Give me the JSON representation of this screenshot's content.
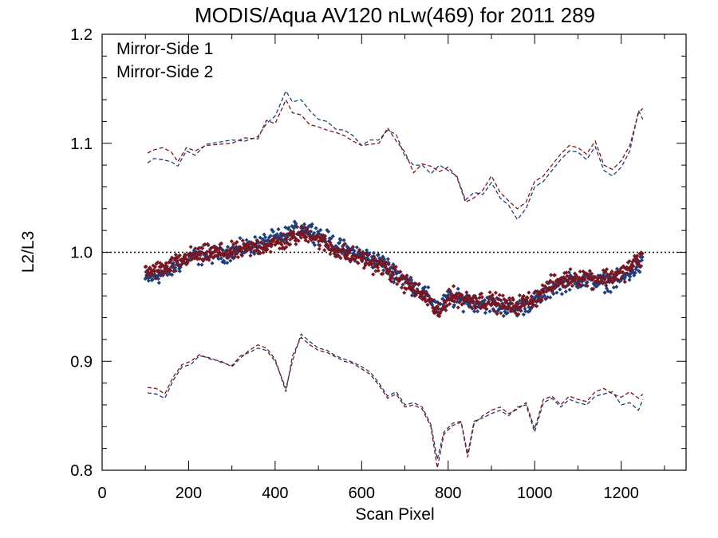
{
  "chart_data": {
    "type": "scatter",
    "title": "MODIS/Aqua AV120 nLw(469) for 2011 289",
    "xlabel": "Scan Pixel",
    "ylabel": "L2/L3",
    "xlim": [
      0,
      1350
    ],
    "ylim": [
      0.8,
      1.2
    ],
    "x_ticks": [
      "0",
      "200",
      "400",
      "600",
      "800",
      "1000",
      "1200"
    ],
    "y_ticks": [
      "0.8",
      "0.9",
      "1.0",
      "1.1",
      "1.2"
    ],
    "reference_line": 1.0,
    "legend_position": "top-left",
    "colors": {
      "ms1": "#1f3f7a",
      "ms2": "#7a1620"
    },
    "series": [
      {
        "name": "Mirror-Side 1",
        "color": "#1f3f7a",
        "mean": [
          [
            100,
            0.975
          ],
          [
            150,
            0.982
          ],
          [
            200,
            0.995
          ],
          [
            250,
            0.998
          ],
          [
            300,
            1.0
          ],
          [
            350,
            1.006
          ],
          [
            400,
            1.012
          ],
          [
            425,
            1.015
          ],
          [
            450,
            1.02
          ],
          [
            475,
            1.022
          ],
          [
            500,
            1.016
          ],
          [
            550,
            1.004
          ],
          [
            600,
            0.997
          ],
          [
            650,
            0.99
          ],
          [
            700,
            0.975
          ],
          [
            750,
            0.96
          ],
          [
            780,
            0.948
          ],
          [
            800,
            0.958
          ],
          [
            850,
            0.955
          ],
          [
            900,
            0.952
          ],
          [
            950,
            0.948
          ],
          [
            1000,
            0.955
          ],
          [
            1050,
            0.97
          ],
          [
            1100,
            0.975
          ],
          [
            1150,
            0.972
          ],
          [
            1200,
            0.975
          ],
          [
            1250,
            0.99
          ]
        ],
        "upper": [
          [
            105,
            1.082
          ],
          [
            120,
            1.086
          ],
          [
            140,
            1.085
          ],
          [
            160,
            1.083
          ],
          [
            175,
            1.079
          ],
          [
            195,
            1.093
          ],
          [
            215,
            1.089
          ],
          [
            240,
            1.099
          ],
          [
            270,
            1.101
          ],
          [
            300,
            1.103
          ],
          [
            330,
            1.102
          ],
          [
            360,
            1.106
          ],
          [
            380,
            1.118
          ],
          [
            400,
            1.125
          ],
          [
            425,
            1.148
          ],
          [
            440,
            1.138
          ],
          [
            460,
            1.14
          ],
          [
            480,
            1.13
          ],
          [
            500,
            1.122
          ],
          [
            520,
            1.12
          ],
          [
            540,
            1.113
          ],
          [
            560,
            1.112
          ],
          [
            580,
            1.107
          ],
          [
            600,
            1.098
          ],
          [
            620,
            1.103
          ],
          [
            640,
            1.103
          ],
          [
            660,
            1.112
          ],
          [
            680,
            1.108
          ],
          [
            700,
            1.088
          ],
          [
            720,
            1.08
          ],
          [
            740,
            1.08
          ],
          [
            760,
            1.072
          ],
          [
            780,
            1.08
          ],
          [
            800,
            1.075
          ],
          [
            820,
            1.07
          ],
          [
            840,
            1.048
          ],
          [
            860,
            1.055
          ],
          [
            880,
            1.053
          ],
          [
            900,
            1.064
          ],
          [
            920,
            1.05
          ],
          [
            940,
            1.043
          ],
          [
            960,
            1.03
          ],
          [
            980,
            1.04
          ],
          [
            1000,
            1.06
          ],
          [
            1020,
            1.065
          ],
          [
            1040,
            1.075
          ],
          [
            1060,
            1.085
          ],
          [
            1080,
            1.093
          ],
          [
            1100,
            1.092
          ],
          [
            1120,
            1.085
          ],
          [
            1140,
            1.097
          ],
          [
            1160,
            1.075
          ],
          [
            1180,
            1.07
          ],
          [
            1200,
            1.078
          ],
          [
            1220,
            1.093
          ],
          [
            1240,
            1.13
          ],
          [
            1250,
            1.122
          ]
        ],
        "lower": [
          [
            105,
            0.871
          ],
          [
            125,
            0.87
          ],
          [
            145,
            0.866
          ],
          [
            165,
            0.883
          ],
          [
            185,
            0.895
          ],
          [
            205,
            0.897
          ],
          [
            225,
            0.905
          ],
          [
            250,
            0.903
          ],
          [
            275,
            0.899
          ],
          [
            300,
            0.896
          ],
          [
            320,
            0.905
          ],
          [
            340,
            0.908
          ],
          [
            360,
            0.912
          ],
          [
            380,
            0.91
          ],
          [
            400,
            0.9
          ],
          [
            425,
            0.875
          ],
          [
            440,
            0.9
          ],
          [
            460,
            0.925
          ],
          [
            480,
            0.918
          ],
          [
            500,
            0.912
          ],
          [
            520,
            0.91
          ],
          [
            540,
            0.905
          ],
          [
            560,
            0.902
          ],
          [
            580,
            0.899
          ],
          [
            600,
            0.895
          ],
          [
            620,
            0.89
          ],
          [
            640,
            0.88
          ],
          [
            660,
            0.868
          ],
          [
            680,
            0.872
          ],
          [
            700,
            0.86
          ],
          [
            720,
            0.862
          ],
          [
            740,
            0.858
          ],
          [
            760,
            0.842
          ],
          [
            775,
            0.81
          ],
          [
            790,
            0.835
          ],
          [
            810,
            0.843
          ],
          [
            830,
            0.845
          ],
          [
            845,
            0.815
          ],
          [
            860,
            0.845
          ],
          [
            880,
            0.848
          ],
          [
            900,
            0.852
          ],
          [
            920,
            0.855
          ],
          [
            940,
            0.85
          ],
          [
            960,
            0.858
          ],
          [
            980,
            0.86
          ],
          [
            1000,
            0.835
          ],
          [
            1020,
            0.862
          ],
          [
            1040,
            0.866
          ],
          [
            1060,
            0.858
          ],
          [
            1080,
            0.865
          ],
          [
            1100,
            0.862
          ],
          [
            1120,
            0.86
          ],
          [
            1140,
            0.868
          ],
          [
            1160,
            0.87
          ],
          [
            1180,
            0.872
          ],
          [
            1200,
            0.86
          ],
          [
            1220,
            0.862
          ],
          [
            1240,
            0.855
          ],
          [
            1250,
            0.865
          ]
        ]
      },
      {
        "name": "Mirror-Side 2",
        "color": "#7a1620",
        "mean": [
          [
            100,
            0.982
          ],
          [
            150,
            0.985
          ],
          [
            200,
            0.996
          ],
          [
            250,
            0.999
          ],
          [
            300,
            1.0
          ],
          [
            350,
            1.004
          ],
          [
            400,
            1.008
          ],
          [
            425,
            1.01
          ],
          [
            450,
            1.015
          ],
          [
            475,
            1.018
          ],
          [
            500,
            1.011
          ],
          [
            550,
            1.0
          ],
          [
            600,
            0.994
          ],
          [
            650,
            0.986
          ],
          [
            700,
            0.972
          ],
          [
            750,
            0.958
          ],
          [
            780,
            0.942
          ],
          [
            800,
            0.96
          ],
          [
            850,
            0.957
          ],
          [
            900,
            0.955
          ],
          [
            950,
            0.95
          ],
          [
            1000,
            0.958
          ],
          [
            1050,
            0.973
          ],
          [
            1100,
            0.978
          ],
          [
            1150,
            0.976
          ],
          [
            1200,
            0.98
          ],
          [
            1250,
            0.997
          ]
        ],
        "upper": [
          [
            105,
            1.091
          ],
          [
            120,
            1.094
          ],
          [
            140,
            1.096
          ],
          [
            160,
            1.092
          ],
          [
            175,
            1.083
          ],
          [
            195,
            1.096
          ],
          [
            215,
            1.093
          ],
          [
            240,
            1.098
          ],
          [
            270,
            1.099
          ],
          [
            300,
            1.1
          ],
          [
            330,
            1.105
          ],
          [
            360,
            1.104
          ],
          [
            380,
            1.121
          ],
          [
            400,
            1.118
          ],
          [
            425,
            1.14
          ],
          [
            440,
            1.128
          ],
          [
            460,
            1.126
          ],
          [
            480,
            1.117
          ],
          [
            500,
            1.115
          ],
          [
            520,
            1.112
          ],
          [
            540,
            1.11
          ],
          [
            560,
            1.107
          ],
          [
            580,
            1.102
          ],
          [
            600,
            1.098
          ],
          [
            620,
            1.099
          ],
          [
            640,
            1.1
          ],
          [
            660,
            1.114
          ],
          [
            680,
            1.102
          ],
          [
            700,
            1.092
          ],
          [
            720,
            1.073
          ],
          [
            740,
            1.081
          ],
          [
            760,
            1.079
          ],
          [
            780,
            1.074
          ],
          [
            800,
            1.078
          ],
          [
            820,
            1.069
          ],
          [
            840,
            1.046
          ],
          [
            860,
            1.05
          ],
          [
            880,
            1.057
          ],
          [
            900,
            1.07
          ],
          [
            920,
            1.055
          ],
          [
            940,
            1.047
          ],
          [
            960,
            1.04
          ],
          [
            980,
            1.046
          ],
          [
            1000,
            1.065
          ],
          [
            1020,
            1.07
          ],
          [
            1040,
            1.08
          ],
          [
            1060,
            1.09
          ],
          [
            1080,
            1.098
          ],
          [
            1100,
            1.096
          ],
          [
            1120,
            1.09
          ],
          [
            1140,
            1.102
          ],
          [
            1160,
            1.08
          ],
          [
            1180,
            1.076
          ],
          [
            1200,
            1.084
          ],
          [
            1220,
            1.098
          ],
          [
            1240,
            1.128
          ],
          [
            1250,
            1.132
          ]
        ],
        "lower": [
          [
            105,
            0.876
          ],
          [
            125,
            0.875
          ],
          [
            145,
            0.87
          ],
          [
            165,
            0.886
          ],
          [
            185,
            0.897
          ],
          [
            205,
            0.9
          ],
          [
            225,
            0.906
          ],
          [
            250,
            0.902
          ],
          [
            275,
            0.9
          ],
          [
            300,
            0.895
          ],
          [
            320,
            0.903
          ],
          [
            340,
            0.91
          ],
          [
            360,
            0.915
          ],
          [
            380,
            0.912
          ],
          [
            400,
            0.902
          ],
          [
            425,
            0.872
          ],
          [
            440,
            0.905
          ],
          [
            460,
            0.922
          ],
          [
            480,
            0.915
          ],
          [
            500,
            0.91
          ],
          [
            520,
            0.908
          ],
          [
            540,
            0.904
          ],
          [
            560,
            0.9
          ],
          [
            580,
            0.898
          ],
          [
            600,
            0.893
          ],
          [
            620,
            0.888
          ],
          [
            640,
            0.878
          ],
          [
            660,
            0.866
          ],
          [
            680,
            0.87
          ],
          [
            700,
            0.858
          ],
          [
            720,
            0.86
          ],
          [
            740,
            0.856
          ],
          [
            760,
            0.84
          ],
          [
            775,
            0.802
          ],
          [
            790,
            0.833
          ],
          [
            810,
            0.841
          ],
          [
            830,
            0.844
          ],
          [
            845,
            0.812
          ],
          [
            860,
            0.843
          ],
          [
            880,
            0.85
          ],
          [
            900,
            0.855
          ],
          [
            920,
            0.858
          ],
          [
            940,
            0.852
          ],
          [
            960,
            0.856
          ],
          [
            980,
            0.862
          ],
          [
            1000,
            0.838
          ],
          [
            1020,
            0.865
          ],
          [
            1040,
            0.868
          ],
          [
            1060,
            0.86
          ],
          [
            1080,
            0.868
          ],
          [
            1100,
            0.865
          ],
          [
            1120,
            0.863
          ],
          [
            1140,
            0.872
          ],
          [
            1160,
            0.875
          ],
          [
            1180,
            0.87
          ],
          [
            1200,
            0.867
          ],
          [
            1220,
            0.872
          ],
          [
            1240,
            0.866
          ],
          [
            1250,
            0.87
          ]
        ]
      }
    ]
  }
}
